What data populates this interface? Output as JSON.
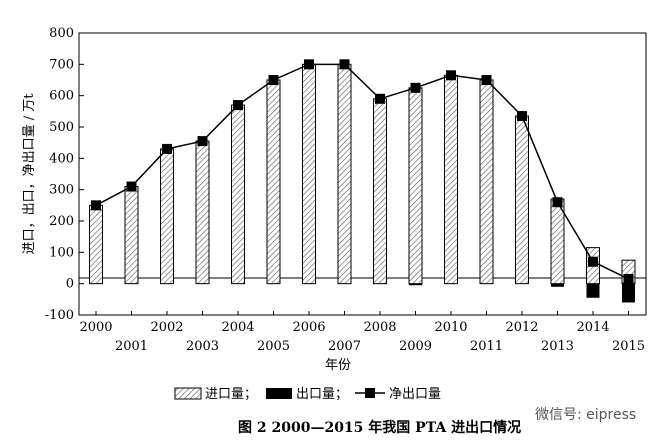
{
  "chart_data": {
    "type": "bar",
    "categories": [
      "2000",
      "2001",
      "2002",
      "2003",
      "2004",
      "2005",
      "2006",
      "2007",
      "2008",
      "2009",
      "2010",
      "2011",
      "2012",
      "2013",
      "2014",
      "2015"
    ],
    "series": [
      {
        "name": "进口量",
        "kind": "bar",
        "pattern": "hatched",
        "values": [
          250,
          310,
          430,
          455,
          570,
          650,
          700,
          700,
          590,
          625,
          665,
          650,
          535,
          270,
          115,
          75
        ]
      },
      {
        "name": "出口量",
        "kind": "bar",
        "color": "#000000",
        "values": [
          0,
          0,
          0,
          0,
          0,
          0,
          0,
          0,
          0,
          -5,
          0,
          0,
          0,
          -10,
          -45,
          -60
        ]
      },
      {
        "name": "净出口量",
        "kind": "line",
        "marker": "square",
        "color": "#000000",
        "values": [
          250,
          310,
          430,
          455,
          570,
          650,
          700,
          700,
          590,
          625,
          665,
          650,
          535,
          260,
          70,
          15
        ]
      }
    ],
    "y_axis": {
      "label": "进口，出口，净出口量 / 万t",
      "ticks": [
        -100,
        0,
        100,
        200,
        300,
        400,
        500,
        600,
        700,
        800
      ],
      "ylim": [
        -100,
        800
      ]
    },
    "x_axis": {
      "label": "年份"
    },
    "legend": {
      "position": "bottom",
      "items": [
        "进口量；",
        "出口量；",
        "净出口量"
      ]
    },
    "caption": "图 2 2000—2015 年我国 PTA 进出口情况"
  },
  "watermark": "微信号: eipress"
}
